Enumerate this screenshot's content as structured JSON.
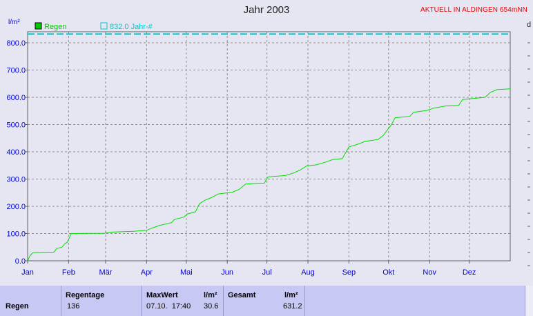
{
  "chart_data": {
    "type": "line",
    "title": "Jahr 2003",
    "y_unit": "l/m²",
    "ylim": [
      0,
      800
    ],
    "yticks": [
      "0.0",
      "100.0",
      "200.0",
      "300.0",
      "400.0",
      "500.0",
      "600.0",
      "700.0",
      "800.0"
    ],
    "xlim": [
      0,
      365
    ],
    "xticks": [
      {
        "label": "Jan",
        "day": 0
      },
      {
        "label": "Feb",
        "day": 31
      },
      {
        "label": "Mär",
        "day": 59
      },
      {
        "label": "Apr",
        "day": 90
      },
      {
        "label": "Mai",
        "day": 120
      },
      {
        "label": "Jun",
        "day": 151
      },
      {
        "label": "Jul",
        "day": 181
      },
      {
        "label": "Aug",
        "day": 212
      },
      {
        "label": "Sep",
        "day": 243
      },
      {
        "label": "Okt",
        "day": 273
      },
      {
        "label": "Nov",
        "day": 304
      },
      {
        "label": "Dez",
        "day": 334
      }
    ],
    "grid": true,
    "legend_position": "top-left",
    "series": [
      {
        "name": "Regen",
        "color": "#00dd00",
        "points": [
          [
            0,
            0
          ],
          [
            2,
            20
          ],
          [
            4,
            30
          ],
          [
            20,
            32
          ],
          [
            22,
            45
          ],
          [
            26,
            50
          ],
          [
            28,
            62
          ],
          [
            30,
            68
          ],
          [
            33,
            100
          ],
          [
            58,
            101
          ],
          [
            62,
            105
          ],
          [
            80,
            108
          ],
          [
            90,
            112
          ],
          [
            94,
            120
          ],
          [
            100,
            130
          ],
          [
            109,
            140
          ],
          [
            111,
            152
          ],
          [
            118,
            160
          ],
          [
            121,
            172
          ],
          [
            127,
            180
          ],
          [
            130,
            210
          ],
          [
            134,
            222
          ],
          [
            139,
            232
          ],
          [
            144,
            245
          ],
          [
            155,
            252
          ],
          [
            160,
            262
          ],
          [
            165,
            282
          ],
          [
            179,
            285
          ],
          [
            182,
            308
          ],
          [
            195,
            313
          ],
          [
            201,
            322
          ],
          [
            206,
            333
          ],
          [
            211,
            348
          ],
          [
            218,
            352
          ],
          [
            224,
            360
          ],
          [
            231,
            372
          ],
          [
            238,
            375
          ],
          [
            243,
            418
          ],
          [
            248,
            425
          ],
          [
            252,
            432
          ],
          [
            255,
            438
          ],
          [
            265,
            445
          ],
          [
            269,
            460
          ],
          [
            272,
            480
          ],
          [
            275,
            498
          ],
          [
            278,
            525
          ],
          [
            289,
            530
          ],
          [
            292,
            545
          ],
          [
            302,
            552
          ],
          [
            307,
            560
          ],
          [
            316,
            568
          ],
          [
            326,
            570
          ],
          [
            329,
            592
          ],
          [
            346,
            600
          ],
          [
            350,
            618
          ],
          [
            355,
            628
          ],
          [
            365,
            631
          ]
        ]
      },
      {
        "name": "832.0 Jahr-#",
        "color": "#00c8c8",
        "value": 832.0,
        "dashed": true
      }
    ]
  },
  "page": {
    "title": "Jahr 2003",
    "status": "AKTUELL IN ALDINGEN 654mNN",
    "y_unit": "l/m²",
    "right_axis_unit": "d"
  },
  "legend": {
    "regen": "Regen",
    "jahr": "832.0 Jahr-#"
  },
  "table": {
    "row_label": "Regen",
    "regentage_header": "Regentage",
    "regentage_value": "136",
    "maxwert_header": "MaxWert",
    "maxwert_unit": "l/m²",
    "maxwert_date": "07.10.  17:40",
    "maxwert_value": "30.6",
    "gesamt_header": "Gesamt",
    "gesamt_unit": "l/m²",
    "gesamt_value": "631.2"
  }
}
